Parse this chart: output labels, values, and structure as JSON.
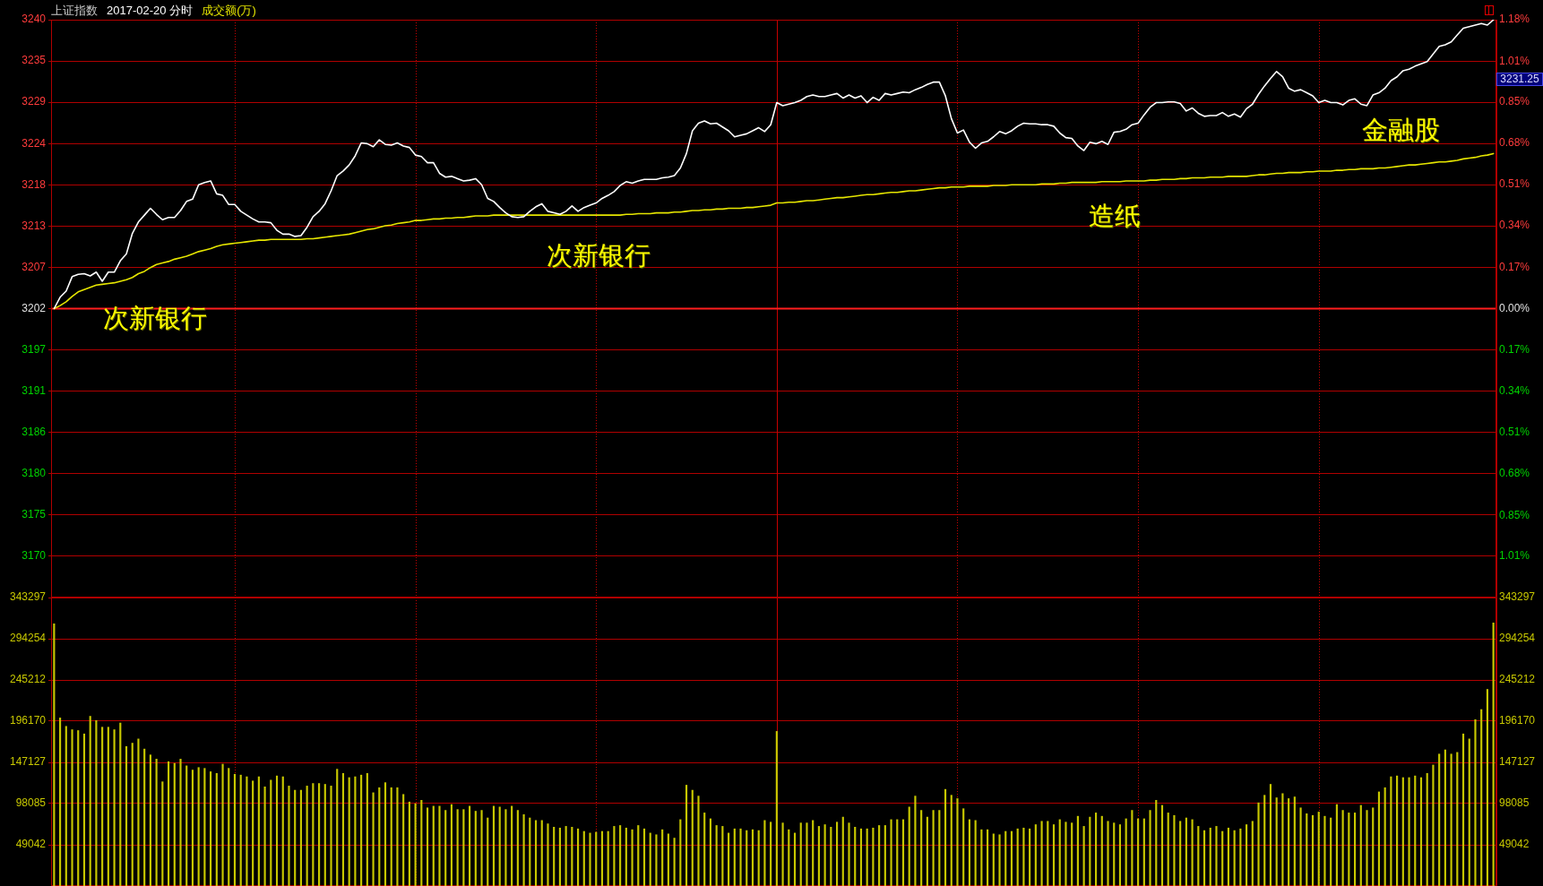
{
  "chart_data": [
    {
      "type": "line",
      "title": "上证指数",
      "subtitle": "2017-02-20 分时",
      "categories": [
        null,
        null,
        null,
        null,
        null,
        null,
        null,
        null,
        null,
        null,
        null,
        null,
        null,
        null,
        null,
        null,
        null,
        null,
        null,
        null,
        null,
        null,
        null,
        null,
        null,
        null,
        null,
        null,
        null,
        null,
        null,
        null,
        null,
        null,
        null,
        null,
        null,
        null,
        null,
        null,
        null,
        null,
        null,
        null,
        null,
        null,
        null,
        null,
        null,
        null,
        null,
        null,
        null,
        null,
        null,
        null,
        null,
        null,
        null,
        null,
        null,
        null,
        null,
        null,
        null,
        null,
        null,
        null,
        null,
        null,
        null,
        null,
        null,
        null,
        null,
        null,
        null,
        null,
        null,
        null,
        null,
        null,
        null,
        null,
        null,
        null,
        null,
        null,
        null,
        null,
        null,
        null,
        null,
        null,
        null,
        null,
        null,
        null,
        null,
        null,
        null,
        null,
        null,
        null,
        null,
        null,
        null,
        null,
        null,
        null,
        null,
        null,
        null,
        null,
        null,
        null,
        null,
        null,
        null,
        null,
        null,
        null,
        null,
        null,
        null,
        null,
        null,
        null,
        null,
        null,
        null,
        null,
        null,
        null,
        null,
        null,
        null,
        null,
        null,
        null,
        null,
        null,
        null,
        null,
        null,
        null,
        null,
        null,
        null,
        null,
        null,
        null,
        null,
        null,
        null,
        null,
        null,
        null,
        null,
        null,
        null,
        null,
        null,
        null,
        null,
        null,
        null,
        null,
        null,
        null,
        null,
        null,
        null,
        null,
        null,
        null,
        null,
        null,
        null,
        null,
        null,
        null,
        null,
        null,
        null,
        null,
        null,
        null,
        null,
        null,
        null,
        null,
        null,
        null,
        null,
        null,
        null,
        null,
        null,
        null,
        null,
        null,
        null,
        null,
        null,
        null,
        null,
        null,
        null,
        null,
        null,
        null,
        null,
        null,
        null,
        null,
        null,
        null,
        null,
        null,
        null,
        null,
        null,
        null,
        null,
        null,
        null,
        null,
        null,
        null,
        null,
        null,
        null,
        null,
        null,
        null,
        null,
        null,
        null,
        null
      ],
      "series": [
        {
          "color": "#ffffff",
          "values": [
            3202.0,
            3203.5,
            3204.3,
            3206.2,
            3206.5,
            3206.6,
            3206.3,
            3206.8,
            3205.6,
            3206.8,
            3206.8,
            3208.3,
            3209.2,
            3211.9,
            3213.4,
            3214.3,
            3215.2,
            3214.4,
            3213.7,
            3214.0,
            3214.0,
            3214.9,
            3216.1,
            3216.4,
            3218.3,
            3218.6,
            3218.8,
            3217.1,
            3216.9,
            3215.7,
            3215.7,
            3214.8,
            3214.3,
            3213.8,
            3213.4,
            3213.4,
            3213.3,
            3212.3,
            3211.8,
            3211.8,
            3211.5,
            3211.6,
            3212.7,
            3214.1,
            3214.8,
            3215.8,
            3217.5,
            3219.5,
            3220.1,
            3220.9,
            3222.1,
            3223.8,
            3223.7,
            3223.3,
            3224.2,
            3223.6,
            3223.5,
            3223.8,
            3223.4,
            3223.2,
            3222.2,
            3222.0,
            3221.2,
            3221.2,
            3219.8,
            3219.3,
            3219.4,
            3219.1,
            3218.8,
            3218.9,
            3219.1,
            3218.3,
            3216.5,
            3216.1,
            3215.3,
            3214.6,
            3214.1,
            3214.0,
            3214.1,
            3214.8,
            3215.4,
            3215.8,
            3214.8,
            3214.6,
            3214.4,
            3214.8,
            3215.5,
            3214.8,
            3215.3,
            3215.6,
            3215.9,
            3216.5,
            3216.9,
            3217.4,
            3218.2,
            3218.7,
            3218.5,
            3218.8,
            3219.0,
            3219.0,
            3219.0,
            3219.2,
            3219.3,
            3219.5,
            3220.5,
            3222.4,
            3225.4,
            3226.4,
            3226.7,
            3226.3,
            3226.4,
            3225.9,
            3225.4,
            3224.6,
            3224.8,
            3225.0,
            3225.4,
            3225.8,
            3225.3,
            3226.2,
            3229.1,
            3228.7,
            3228.9,
            3229.1,
            3229.4,
            3229.9,
            3230.1,
            3229.9,
            3229.9,
            3230.1,
            3230.3,
            3229.7,
            3230.1,
            3229.7,
            3230.0,
            3229.1,
            3229.8,
            3229.4,
            3230.3,
            3230.1,
            3230.3,
            3230.5,
            3230.4,
            3230.8,
            3231.1,
            3231.5,
            3231.8,
            3231.8,
            3230.0,
            3227.0,
            3225.1,
            3225.5,
            3223.9,
            3223.1,
            3223.8,
            3224.0,
            3224.6,
            3225.3,
            3225.0,
            3225.4,
            3226.0,
            3226.4,
            3226.3,
            3226.3,
            3226.2,
            3226.2,
            3226.0,
            3225.1,
            3224.5,
            3224.4,
            3223.4,
            3222.8,
            3223.9,
            3223.7,
            3224.0,
            3223.6,
            3225.2,
            3225.3,
            3225.6,
            3226.2,
            3226.4,
            3227.5,
            3228.5,
            3229.1,
            3229.1,
            3229.2,
            3229.2,
            3229.0,
            3228.0,
            3228.4,
            3227.7,
            3227.3,
            3227.4,
            3227.4,
            3227.8,
            3227.3,
            3227.6,
            3227.2,
            3228.3,
            3228.9,
            3230.2,
            3231.3,
            3232.3,
            3233.2,
            3232.5,
            3231.0,
            3230.6,
            3230.8,
            3230.4,
            3230.0,
            3229.1,
            3229.4,
            3229.1,
            3229.1,
            3228.8,
            3229.4,
            3229.6,
            3228.9,
            3228.7,
            3230.1,
            3230.4,
            3231.0,
            3232.0,
            3232.5,
            3233.3,
            3233.5,
            3233.9,
            3234.2,
            3234.5,
            3235.5,
            3236.5,
            3236.7,
            3237.1,
            3238.0,
            3238.9,
            3239.1,
            3239.3,
            3239.5,
            3239.3,
            3240.0
          ]
        },
        {
          "color": "#e6e600",
          "values": [
            3202.0,
            3202.4,
            3202.9,
            3203.6,
            3204.2,
            3204.5,
            3204.8,
            3205.1,
            3205.2,
            3205.3,
            3205.4,
            3205.6,
            3205.8,
            3206.1,
            3206.6,
            3206.9,
            3207.4,
            3207.8,
            3208.0,
            3208.2,
            3208.5,
            3208.7,
            3208.9,
            3209.2,
            3209.5,
            3209.7,
            3209.9,
            3210.2,
            3210.4,
            3210.5,
            3210.6,
            3210.7,
            3210.8,
            3210.9,
            3211.0,
            3211.0,
            3211.1,
            3211.1,
            3211.1,
            3211.1,
            3211.1,
            3211.1,
            3211.2,
            3211.2,
            3211.3,
            3211.4,
            3211.5,
            3211.6,
            3211.7,
            3211.8,
            3212.0,
            3212.2,
            3212.4,
            3212.5,
            3212.7,
            3212.9,
            3213.0,
            3213.2,
            3213.3,
            3213.4,
            3213.6,
            3213.6,
            3213.7,
            3213.8,
            3213.8,
            3213.9,
            3213.9,
            3214.0,
            3214.0,
            3214.1,
            3214.2,
            3214.2,
            3214.2,
            3214.3,
            3214.3,
            3214.3,
            3214.3,
            3214.3,
            3214.3,
            3214.3,
            3214.3,
            3214.3,
            3214.3,
            3214.3,
            3214.3,
            3214.3,
            3214.3,
            3214.3,
            3214.3,
            3214.3,
            3214.3,
            3214.3,
            3214.3,
            3214.3,
            3214.3,
            3214.4,
            3214.4,
            3214.5,
            3214.5,
            3214.5,
            3214.6,
            3214.6,
            3214.6,
            3214.7,
            3214.7,
            3214.8,
            3214.9,
            3214.9,
            3215.0,
            3215.0,
            3215.1,
            3215.1,
            3215.2,
            3215.2,
            3215.2,
            3215.3,
            3215.3,
            3215.4,
            3215.5,
            3215.6,
            3215.9,
            3215.9,
            3216.0,
            3216.0,
            3216.1,
            3216.2,
            3216.2,
            3216.3,
            3216.4,
            3216.5,
            3216.6,
            3216.6,
            3216.7,
            3216.8,
            3216.9,
            3217.0,
            3217.0,
            3217.1,
            3217.2,
            3217.3,
            3217.3,
            3217.4,
            3217.5,
            3217.5,
            3217.6,
            3217.7,
            3217.8,
            3217.9,
            3217.9,
            3218.0,
            3218.0,
            3218.0,
            3218.1,
            3218.1,
            3218.1,
            3218.1,
            3218.2,
            3218.2,
            3218.2,
            3218.3,
            3218.3,
            3218.3,
            3218.3,
            3218.3,
            3218.4,
            3218.4,
            3218.4,
            3218.5,
            3218.5,
            3218.6,
            3218.6,
            3218.6,
            3218.6,
            3218.6,
            3218.7,
            3218.7,
            3218.7,
            3218.7,
            3218.8,
            3218.8,
            3218.8,
            3218.8,
            3218.9,
            3218.9,
            3219.0,
            3219.0,
            3219.0,
            3219.1,
            3219.1,
            3219.2,
            3219.2,
            3219.2,
            3219.3,
            3219.3,
            3219.3,
            3219.4,
            3219.4,
            3219.4,
            3219.4,
            3219.5,
            3219.6,
            3219.6,
            3219.7,
            3219.8,
            3219.8,
            3219.9,
            3219.9,
            3219.9,
            3220.0,
            3220.0,
            3220.1,
            3220.1,
            3220.1,
            3220.2,
            3220.2,
            3220.3,
            3220.3,
            3220.4,
            3220.4,
            3220.4,
            3220.5,
            3220.5,
            3220.6,
            3220.7,
            3220.8,
            3220.9,
            3220.9,
            3221.0,
            3221.1,
            3221.2,
            3221.3,
            3221.3,
            3221.4,
            3221.5,
            3221.7,
            3221.8,
            3221.9,
            3222.1,
            3222.2,
            3222.4
          ]
        }
      ],
      "ylim": [
        3163.99,
        3240.01
      ],
      "yticks": [
        {
          "value": 3169.5,
          "label": "3170"
        },
        {
          "value": 3174.85,
          "label": "3175"
        },
        {
          "value": 3180.28,
          "label": "3180"
        },
        {
          "value": 3185.71,
          "label": "3186"
        },
        {
          "value": 3191.14,
          "label": "3191"
        },
        {
          "value": 3196.57,
          "label": "3197"
        },
        3202,
        {
          "value": 3207.43,
          "label": "3207"
        },
        {
          "value": 3212.86,
          "label": "3213"
        },
        {
          "value": 3218.29,
          "label": "3218"
        },
        {
          "value": 3223.72,
          "label": "3224"
        },
        {
          "value": 3229.15,
          "label": "3229"
        },
        {
          "value": 3234.58,
          "label": "3235"
        },
        {
          "value": 3240.01,
          "label": "3240"
        }
      ],
      "y2lim": [
        -1.184,
        1.184
      ],
      "y2ticks": [
        {
          "value": -1.014,
          "label": "1.01%"
        },
        {
          "value": -0.848,
          "label": "0.85%"
        },
        {
          "value": -0.678,
          "label": "0.68%"
        },
        {
          "value": -0.509,
          "label": "0.51%"
        },
        {
          "value": -0.339,
          "label": "0.34%"
        },
        {
          "value": -0.17,
          "label": "0.17%"
        },
        {
          "value": 0,
          "label": "0.00%"
        },
        {
          "value": 0.17,
          "label": "0.17%"
        },
        {
          "value": 0.339,
          "label": "0.34%"
        },
        {
          "value": 0.509,
          "label": "0.51%"
        },
        {
          "value": 0.678,
          "label": "0.68%"
        },
        {
          "value": 0.848,
          "label": "0.85%"
        },
        {
          "value": 1.014,
          "label": "1.01%"
        },
        {
          "value": 1.184,
          "label": "1.18%"
        }
      ],
      "ref_lines": [
        {
          "axis": "y",
          "value": 3202
        }
      ],
      "annotations": [
        "成交额(万)",
        "次新银行",
        "次新银行",
        "造纸",
        "金融股",
        "3231.25"
      ],
      "grid": true
    },
    {
      "type": "bar",
      "categories": [
        null,
        null,
        null,
        null,
        null,
        null,
        null,
        null,
        null,
        null,
        null,
        null,
        null,
        null,
        null,
        null,
        null,
        null,
        null,
        null,
        null,
        null,
        null,
        null,
        null,
        null,
        null,
        null,
        null,
        null,
        null,
        null,
        null,
        null,
        null,
        null,
        null,
        null,
        null,
        null,
        null,
        null,
        null,
        null,
        null,
        null,
        null,
        null,
        null,
        null,
        null,
        null,
        null,
        null,
        null,
        null,
        null,
        null,
        null,
        null,
        null,
        null,
        null,
        null,
        null,
        null,
        null,
        null,
        null,
        null,
        null,
        null,
        null,
        null,
        null,
        null,
        null,
        null,
        null,
        null,
        null,
        null,
        null,
        null,
        null,
        null,
        null,
        null,
        null,
        null,
        null,
        null,
        null,
        null,
        null,
        null,
        null,
        null,
        null,
        null,
        null,
        null,
        null,
        null,
        null,
        null,
        null,
        null,
        null,
        null,
        null,
        null,
        null,
        null,
        null,
        null,
        null,
        null,
        null,
        null,
        null,
        null,
        null,
        null,
        null,
        null,
        null,
        null,
        null,
        null,
        null,
        null,
        null,
        null,
        null,
        null,
        null,
        null,
        null,
        null,
        null,
        null,
        null,
        null,
        null,
        null,
        null,
        null,
        null,
        null,
        null,
        null,
        null,
        null,
        null,
        null,
        null,
        null,
        null,
        null,
        null,
        null,
        null,
        null,
        null,
        null,
        null,
        null,
        null,
        null,
        null,
        null,
        null,
        null,
        null,
        null,
        null,
        null,
        null,
        null,
        null,
        null,
        null,
        null,
        null,
        null,
        null,
        null,
        null,
        null,
        null,
        null,
        null,
        null,
        null,
        null,
        null,
        null,
        null,
        null,
        null,
        null,
        null,
        null,
        null,
        null,
        null,
        null,
        null,
        null,
        null,
        null,
        null,
        null,
        null,
        null,
        null,
        null,
        null,
        null,
        null,
        null,
        null,
        null,
        null,
        null,
        null,
        null,
        null,
        null,
        null,
        null,
        null,
        null,
        null,
        null,
        null,
        null,
        null,
        null
      ],
      "values": [
        312000,
        200000,
        190000,
        186000,
        185000,
        181000,
        202000,
        197000,
        189000,
        189000,
        186000,
        194000,
        166000,
        170000,
        175000,
        163000,
        156000,
        151000,
        124000,
        148000,
        146000,
        151000,
        143000,
        138000,
        141000,
        140000,
        136000,
        134000,
        145000,
        140000,
        133000,
        132000,
        130000,
        125000,
        130000,
        118000,
        126000,
        131000,
        130000,
        119000,
        114000,
        114000,
        119000,
        122000,
        122000,
        121000,
        119000,
        139000,
        134000,
        129000,
        130000,
        132000,
        134000,
        111000,
        117000,
        123000,
        117000,
        117000,
        109000,
        100000,
        98000,
        102000,
        93000,
        95000,
        95000,
        90000,
        97000,
        91000,
        91000,
        95000,
        89000,
        90000,
        81000,
        95000,
        94000,
        91000,
        95000,
        90000,
        85000,
        81000,
        78000,
        78000,
        74000,
        70000,
        69000,
        71000,
        70000,
        68000,
        65000,
        63000,
        64000,
        65000,
        65000,
        71000,
        72000,
        69000,
        67000,
        72000,
        68000,
        63000,
        61000,
        67000,
        62000,
        57000,
        79000,
        120000,
        114000,
        107000,
        87000,
        80000,
        72000,
        71000,
        63000,
        68000,
        68000,
        66000,
        67000,
        66000,
        78000,
        76000,
        184000,
        75000,
        67000,
        63000,
        75000,
        75000,
        78000,
        71000,
        73000,
        70000,
        76000,
        82000,
        75000,
        70000,
        68000,
        68000,
        69000,
        72000,
        72000,
        79000,
        79000,
        79000,
        94000,
        107000,
        90000,
        82000,
        90000,
        90000,
        115000,
        108000,
        104000,
        92000,
        79000,
        78000,
        67000,
        67000,
        62000,
        61000,
        65000,
        65000,
        68000,
        69000,
        68000,
        73000,
        77000,
        77000,
        73000,
        79000,
        76000,
        75000,
        83000,
        71000,
        82000,
        87000,
        83000,
        77000,
        75000,
        73000,
        80000,
        90000,
        80000,
        80000,
        90000,
        102000,
        96000,
        87000,
        84000,
        77000,
        81000,
        79000,
        71000,
        66000,
        69000,
        71000,
        65000,
        69000,
        66000,
        68000,
        73000,
        77000,
        99000,
        108000,
        121000,
        105000,
        110000,
        104000,
        106000,
        93000,
        86000,
        84000,
        88000,
        83000,
        81000,
        97000,
        90000,
        87000,
        87000,
        96000,
        90000,
        93000,
        112000,
        117000,
        130000,
        131000,
        129000,
        129000,
        131000,
        129000,
        134000,
        144000,
        157000,
        162000,
        157000,
        159000,
        181000,
        175000,
        198000,
        210000,
        234000,
        313000
      ],
      "color": "#c8c800",
      "ylim": [
        0,
        343297
      ],
      "yticks": [
        49042,
        98085,
        147127,
        196170,
        245212,
        294254,
        343297
      ],
      "y2lim": [
        0,
        343297
      ],
      "y2ticks": [
        49042,
        98085,
        147127,
        196170,
        245212,
        294254,
        343297
      ],
      "grid": true
    }
  ]
}
